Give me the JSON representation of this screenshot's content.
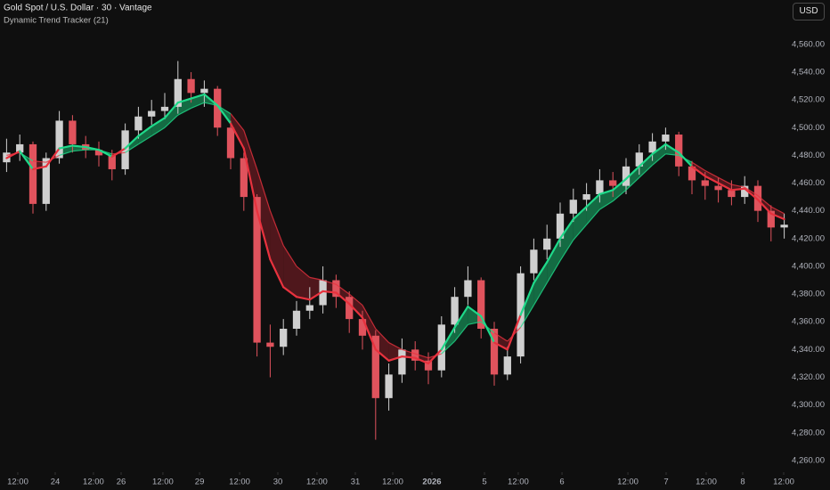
{
  "chart_data": {
    "type": "candlestick",
    "title": "Gold Spot / U.S. Dollar · 30 · Vantage",
    "subtitle": "Dynamic Trend Tracker (21)",
    "currency": "USD",
    "up_color": "#cfcfcf",
    "down_color": "#e0535d",
    "bull_color": "#1fd98a",
    "bear_color": "#e8323e",
    "bull_fill": "#17a866",
    "bear_fill": "#7a1d24",
    "grid": false,
    "xlim": [
      0,
      60
    ],
    "ylim": [
      4251.6,
      4592
    ],
    "yticks": [
      {
        "value": 4260,
        "label": "4,260.00"
      },
      {
        "value": 4280,
        "label": "4,280.00"
      },
      {
        "value": 4300,
        "label": "4,300.00"
      },
      {
        "value": 4320,
        "label": "4,320.00"
      },
      {
        "value": 4340,
        "label": "4,340.00"
      },
      {
        "value": 4360,
        "label": "4,360.00"
      },
      {
        "value": 4380,
        "label": "4,380.00"
      },
      {
        "value": 4400,
        "label": "4,400.00"
      },
      {
        "value": 4420,
        "label": "4,420.00"
      },
      {
        "value": 4440,
        "label": "4,440.00"
      },
      {
        "value": 4460,
        "label": "4,460.00"
      },
      {
        "value": 4480,
        "label": "4,480.00"
      },
      {
        "value": 4500,
        "label": "4,500.00"
      },
      {
        "value": 4520,
        "label": "4,520.00"
      },
      {
        "value": 4540,
        "label": "4,540.00"
      },
      {
        "value": 4560,
        "label": "4,560.00"
      }
    ],
    "xticks": [
      {
        "value": 1.35,
        "label": "12:00"
      },
      {
        "value": 4.19,
        "label": "24"
      },
      {
        "value": 7.09,
        "label": "12:00"
      },
      {
        "value": 9.19,
        "label": "26"
      },
      {
        "value": 12.36,
        "label": "12:00"
      },
      {
        "value": 15.14,
        "label": "29"
      },
      {
        "value": 18.18,
        "label": "12:00"
      },
      {
        "value": 21.08,
        "label": "30"
      },
      {
        "value": 24.05,
        "label": "12:00"
      },
      {
        "value": 26.96,
        "label": "31"
      },
      {
        "value": 29.8,
        "label": "12:00"
      },
      {
        "value": 32.77,
        "label": "2026",
        "bold": true
      },
      {
        "value": 36.76,
        "label": "5"
      },
      {
        "value": 39.32,
        "label": "12:00"
      },
      {
        "value": 42.64,
        "label": "6"
      },
      {
        "value": 47.64,
        "label": "12:00"
      },
      {
        "value": 50.54,
        "label": "7"
      },
      {
        "value": 53.58,
        "label": "12:00"
      },
      {
        "value": 56.35,
        "label": "8"
      },
      {
        "value": 59.46,
        "label": "12:00"
      }
    ],
    "open": [
      4475,
      4482,
      4488,
      4445,
      4478,
      4505,
      4488,
      4484,
      4480,
      4470,
      4498,
      4508,
      4512,
      4515,
      4535,
      4525,
      4528,
      4500,
      4478,
      4450,
      4345,
      4342,
      4355,
      4368,
      4372,
      4390,
      4378,
      4362,
      4350,
      4305,
      4322,
      4340,
      4332,
      4325,
      4358,
      4378,
      4390,
      4355,
      4322,
      4335,
      4395,
      4412,
      4420,
      4438,
      4448,
      4452,
      4462,
      4458,
      4472,
      4482,
      4490,
      4495,
      4472,
      4462,
      4458,
      4455,
      4450,
      4458,
      4440,
      4428
    ],
    "high": [
      4492,
      4495,
      4490,
      4482,
      4512,
      4509,
      4494,
      4490,
      4484,
      4503,
      4515,
      4520,
      4525,
      4548,
      4540,
      4534,
      4530,
      4505,
      4482,
      4452,
      4358,
      4362,
      4375,
      4385,
      4400,
      4394,
      4382,
      4368,
      4354,
      4330,
      4348,
      4346,
      4338,
      4364,
      4385,
      4400,
      4392,
      4360,
      4342,
      4400,
      4420,
      4430,
      4446,
      4456,
      4460,
      4470,
      4468,
      4478,
      4488,
      4496,
      4500,
      4497,
      4476,
      4468,
      4464,
      4462,
      4465,
      4462,
      4444,
      4438
    ],
    "low": [
      4468,
      4476,
      4438,
      4440,
      4474,
      4482,
      4478,
      4472,
      4462,
      4466,
      4492,
      4502,
      4506,
      4510,
      4518,
      4515,
      4494,
      4470,
      4440,
      4335,
      4320,
      4336,
      4350,
      4362,
      4366,
      4370,
      4352,
      4340,
      4275,
      4296,
      4316,
      4325,
      4315,
      4320,
      4352,
      4372,
      4348,
      4314,
      4318,
      4330,
      4390,
      4405,
      4414,
      4432,
      4440,
      4446,
      4450,
      4452,
      4466,
      4476,
      4484,
      4465,
      4452,
      4448,
      4446,
      4444,
      4445,
      4432,
      4418,
      4420
    ],
    "close": [
      4482,
      4488,
      4445,
      4478,
      4505,
      4488,
      4484,
      4480,
      4470,
      4498,
      4508,
      4512,
      4515,
      4535,
      4525,
      4528,
      4500,
      4478,
      4450,
      4345,
      4342,
      4355,
      4368,
      4372,
      4390,
      4378,
      4362,
      4350,
      4305,
      4322,
      4340,
      4332,
      4325,
      4358,
      4378,
      4390,
      4355,
      4322,
      4335,
      4395,
      4412,
      4420,
      4438,
      4448,
      4452,
      4462,
      4458,
      4472,
      4482,
      4490,
      4495,
      4472,
      4462,
      4458,
      4455,
      4450,
      4458,
      4440,
      4428,
      4430
    ],
    "fast": [
      4478,
      4483,
      4470,
      4472,
      4485,
      4487,
      4486,
      4484,
      4479,
      4485,
      4494,
      4501,
      4507,
      4518,
      4521,
      4524,
      4516,
      4503,
      4485,
      4440,
      4405,
      4385,
      4378,
      4376,
      4382,
      4381,
      4373,
      4363,
      4340,
      4332,
      4335,
      4334,
      4330,
      4340,
      4356,
      4371,
      4364,
      4345,
      4340,
      4365,
      4388,
      4403,
      4420,
      4434,
      4443,
      4452,
      4455,
      4463,
      4472,
      4481,
      4488,
      4482,
      4472,
      4465,
      4460,
      4455,
      4456,
      4448,
      4438,
      4434
    ],
    "slow": [
      4480,
      4482,
      4476,
      4475,
      4480,
      4483,
      4484,
      4484,
      4481,
      4482,
      4488,
      4494,
      4500,
      4509,
      4514,
      4518,
      4516,
      4510,
      4498,
      4470,
      4440,
      4415,
      4400,
      4392,
      4390,
      4387,
      4380,
      4372,
      4355,
      4345,
      4340,
      4337,
      4334,
      4337,
      4346,
      4358,
      4360,
      4352,
      4346,
      4356,
      4372,
      4388,
      4404,
      4419,
      4430,
      4441,
      4447,
      4455,
      4464,
      4473,
      4481,
      4480,
      4475,
      4469,
      4464,
      4459,
      4457,
      4451,
      4443,
      4438
    ]
  }
}
